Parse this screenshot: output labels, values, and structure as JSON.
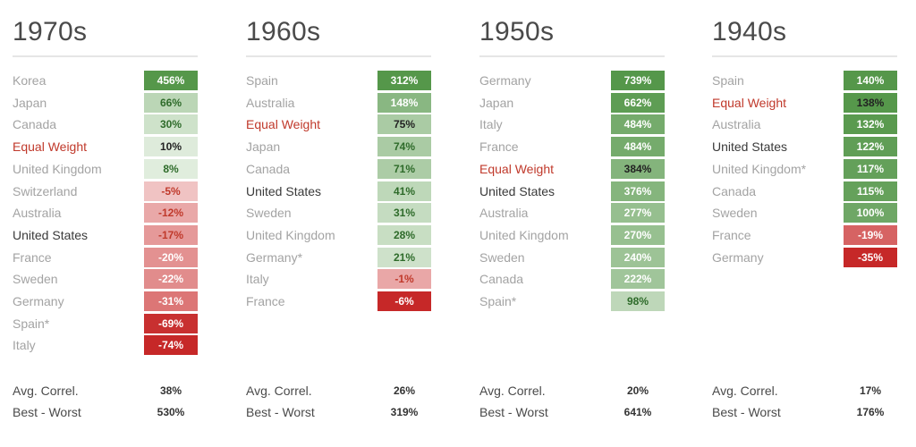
{
  "chart_data": {
    "type": "table",
    "stats_labels": {
      "avg_correl": "Avg. Correl.",
      "best_worst": "Best - Worst"
    },
    "decades": [
      {
        "title": "1970s",
        "rows": [
          {
            "country": "Korea",
            "value": "456%",
            "num": 456
          },
          {
            "country": "Japan",
            "value": "66%",
            "num": 66
          },
          {
            "country": "Canada",
            "value": "30%",
            "num": 30
          },
          {
            "country": "Equal Weight",
            "value": "10%",
            "num": 10,
            "highlight": "red"
          },
          {
            "country": "United Kingdom",
            "value": "8%",
            "num": 8
          },
          {
            "country": "Switzerland",
            "value": "-5%",
            "num": -5
          },
          {
            "country": "Australia",
            "value": "-12%",
            "num": -12
          },
          {
            "country": "United States",
            "value": "-17%",
            "num": -17,
            "highlight": "dark"
          },
          {
            "country": "France",
            "value": "-20%",
            "num": -20
          },
          {
            "country": "Sweden",
            "value": "-22%",
            "num": -22
          },
          {
            "country": "Germany",
            "value": "-31%",
            "num": -31
          },
          {
            "country": "Spain*",
            "value": "-69%",
            "num": -69
          },
          {
            "country": "Italy",
            "value": "-74%",
            "num": -74
          }
        ],
        "avg_correl": "38%",
        "best_worst": "530%"
      },
      {
        "title": "1960s",
        "rows": [
          {
            "country": "Spain",
            "value": "312%",
            "num": 312
          },
          {
            "country": "Australia",
            "value": "148%",
            "num": 148
          },
          {
            "country": "Equal Weight",
            "value": "75%",
            "num": 75,
            "highlight": "red"
          },
          {
            "country": "Japan",
            "value": "74%",
            "num": 74
          },
          {
            "country": "Canada",
            "value": "71%",
            "num": 71
          },
          {
            "country": "United States",
            "value": "41%",
            "num": 41,
            "highlight": "dark"
          },
          {
            "country": "Sweden",
            "value": "31%",
            "num": 31
          },
          {
            "country": "United Kingdom",
            "value": "28%",
            "num": 28
          },
          {
            "country": "Germany*",
            "value": "21%",
            "num": 21
          },
          {
            "country": "Italy",
            "value": "-1%",
            "num": -1
          },
          {
            "country": "France",
            "value": "-6%",
            "num": -6
          }
        ],
        "avg_correl": "26%",
        "best_worst": "319%"
      },
      {
        "title": "1950s",
        "rows": [
          {
            "country": "Germany",
            "value": "739%",
            "num": 739
          },
          {
            "country": "Japan",
            "value": "662%",
            "num": 662
          },
          {
            "country": "Italy",
            "value": "484%",
            "num": 484
          },
          {
            "country": "France",
            "value": "484%",
            "num": 484
          },
          {
            "country": "Equal Weight",
            "value": "384%",
            "num": 384,
            "highlight": "red"
          },
          {
            "country": "United States",
            "value": "376%",
            "num": 376,
            "highlight": "dark"
          },
          {
            "country": "Australia",
            "value": "277%",
            "num": 277
          },
          {
            "country": "United Kingdom",
            "value": "270%",
            "num": 270
          },
          {
            "country": "Sweden",
            "value": "240%",
            "num": 240
          },
          {
            "country": "Canada",
            "value": "222%",
            "num": 222
          },
          {
            "country": "Spain*",
            "value": "98%",
            "num": 98
          }
        ],
        "avg_correl": "20%",
        "best_worst": "641%"
      },
      {
        "title": "1940s",
        "rows": [
          {
            "country": "Spain",
            "value": "140%",
            "num": 140
          },
          {
            "country": "Equal Weight",
            "value": "138%",
            "num": 138,
            "highlight": "red"
          },
          {
            "country": "Australia",
            "value": "132%",
            "num": 132
          },
          {
            "country": "United States",
            "value": "122%",
            "num": 122,
            "highlight": "dark"
          },
          {
            "country": "United Kingdom*",
            "value": "117%",
            "num": 117
          },
          {
            "country": "Canada",
            "value": "115%",
            "num": 115
          },
          {
            "country": "Sweden",
            "value": "100%",
            "num": 100
          },
          {
            "country": "France",
            "value": "-19%",
            "num": -19
          },
          {
            "country": "Germany",
            "value": "-35%",
            "num": -35
          }
        ],
        "avg_correl": "17%",
        "best_worst": "176%"
      }
    ]
  },
  "colors": {
    "positive_strong": "#55974a",
    "negative_strong": "#c62828",
    "country_default": "#a3a3a3",
    "country_us": "#3a3a3a",
    "country_equal_weight": "#c0392b"
  }
}
